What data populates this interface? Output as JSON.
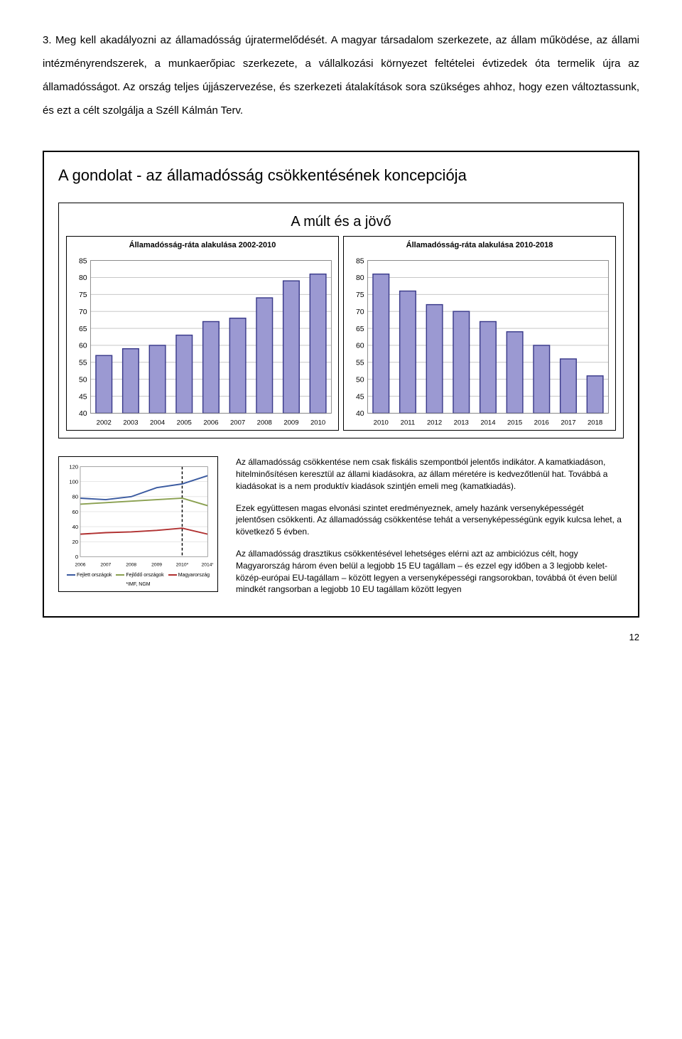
{
  "body_paragraph": "3. Meg kell akadályozni az államadósság újratermelődését. A magyar társadalom szerkezete, az állam működése, az állami intézményrendszerek, a munkaerőpiac szerkezete, a vállalkozási környezet feltételei évtizedek óta termelik újra az államadósságot. Az ország teljes újjászervezése, és szerkezeti átalakítások sora szükséges ahhoz, hogy ezen változtassunk, és ezt a célt szolgálja a Széll Kálmán Terv.",
  "concept_title": "A gondolat - az államadósság csökkentésének koncepciója",
  "charts_main_title": "A múlt és a jövő",
  "chart_left": {
    "title": "Államadósság-ráta alakulása 2002-2010",
    "ylim": [
      40,
      85
    ],
    "ytick_step": 5,
    "years": [
      "2002",
      "2003",
      "2004",
      "2005",
      "2006",
      "2007",
      "2008",
      "2009",
      "2010"
    ],
    "values": [
      57,
      59,
      60,
      63,
      67,
      68,
      74,
      79,
      81
    ],
    "bar_fill": "#9b99d2",
    "bar_stroke": "#3a3a8a",
    "grid_color": "#bfbfbf",
    "background_color": "#ffffff"
  },
  "chart_right": {
    "title": "Államadósság-ráta alakulása 2010-2018",
    "ylim": [
      40,
      85
    ],
    "ytick_step": 5,
    "years": [
      "2010",
      "2011",
      "2012",
      "2013",
      "2014",
      "2015",
      "2016",
      "2017",
      "2018"
    ],
    "values": [
      81,
      76,
      72,
      70,
      67,
      64,
      60,
      56,
      51
    ],
    "bar_fill": "#9b99d2",
    "bar_stroke": "#3a3a8a",
    "grid_color": "#bfbfbf",
    "background_color": "#ffffff"
  },
  "mini_chart": {
    "ylim": [
      0,
      120
    ],
    "ytick_step": 20,
    "years": [
      "2006",
      "2007",
      "2008",
      "2009",
      "2010*",
      "2014*"
    ],
    "series": [
      {
        "name": "Fejlett országok",
        "color": "#3a5aa0",
        "values": [
          78,
          76,
          80,
          92,
          97,
          108
        ],
        "dash": false
      },
      {
        "name": "Fejlődő országok",
        "color": "#8aa050",
        "values": [
          70,
          72,
          74,
          76,
          78,
          68
        ],
        "dash": false
      },
      {
        "name": "Magyarország",
        "color": "#b03030",
        "values": [
          30,
          32,
          33,
          35,
          38,
          30
        ],
        "dash": false
      }
    ],
    "note": "*IMF, NGM",
    "divider_after_index": 4,
    "grid_color": "#cccccc"
  },
  "right_text": {
    "p1": "Az államadósság csökkentése nem csak fiskális szempontból jelentős indikátor. A kamatkiadáson, hitelminősítésen keresztül az állami kiadásokra, az állam méretére is kedvezőtlenül hat. Továbbá a kiadásokat is a nem produktív kiadások szintjén emeli meg (kamatkiadás).",
    "p2": "Ezek együttesen magas elvonási szintet eredményeznek, amely hazánk versenyképességét jelentősen csökkenti. Az államadósság csökkentése tehát a versenyképességünk egyik kulcsa lehet, a következő 5 évben.",
    "p3": "Az államadósság drasztikus csökkentésével lehetséges elérni azt az ambiciózus célt, hogy Magyarország három éven belül a legjobb 15 EU tagállam – és ezzel egy időben a 3 legjobb kelet-közép-európai EU-tagállam – között legyen a versenyképességi rangsorokban, továbbá öt éven belül mindkét rangsorban a legjobb 10 EU tagállam között legyen"
  },
  "page_number": "12"
}
